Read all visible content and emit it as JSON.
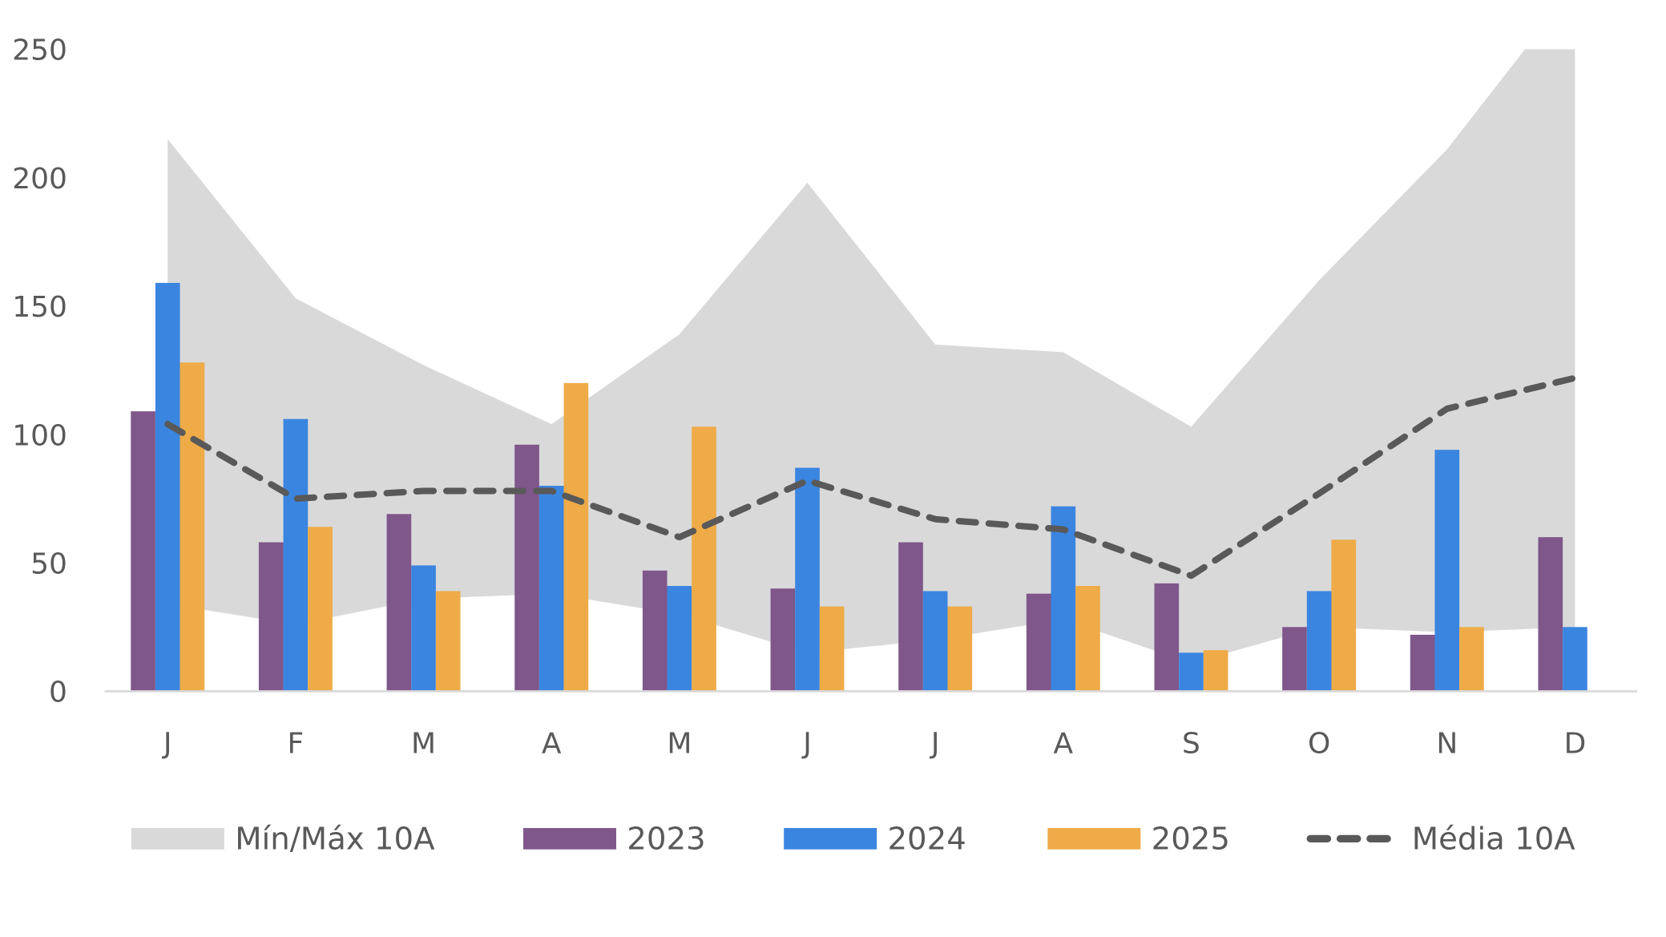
{
  "chart_data": {
    "type": "bar",
    "title": "",
    "xlabel": "",
    "ylabel": "",
    "categories": [
      "J",
      "F",
      "M",
      "A",
      "M",
      "J",
      "J",
      "A",
      "S",
      "O",
      "N",
      "D"
    ],
    "ylim": [
      0,
      250
    ],
    "yticks": [
      0,
      50,
      100,
      150,
      200,
      250
    ],
    "series": [
      {
        "name": "2023",
        "type": "bar",
        "color": "#7F578B",
        "values": [
          109,
          58,
          69,
          96,
          47,
          40,
          58,
          38,
          42,
          25,
          22,
          60
        ]
      },
      {
        "name": "2024",
        "type": "bar",
        "color": "#3A85E0",
        "values": [
          159,
          106,
          49,
          80,
          41,
          87,
          39,
          72,
          15,
          39,
          94,
          25
        ]
      },
      {
        "name": "2025",
        "type": "bar",
        "color": "#EEAB47",
        "values": [
          128,
          64,
          39,
          120,
          103,
          33,
          33,
          41,
          16,
          59,
          25,
          null
        ]
      },
      {
        "name": "Média 10A",
        "type": "line",
        "style": "dashed",
        "color": "#595959",
        "values": [
          104,
          75,
          78,
          78,
          60,
          82,
          67,
          63,
          45,
          77,
          110,
          122
        ]
      }
    ],
    "band": {
      "name": "Mín/Máx 10A",
      "color": "#D9D9D9",
      "min": [
        34,
        26,
        36,
        38,
        30,
        15,
        20,
        28,
        11,
        25,
        23,
        25
      ],
      "max": [
        215,
        153,
        127,
        104,
        139,
        198,
        135,
        132,
        103,
        160,
        211,
        275
      ]
    },
    "legend_position": "bottom"
  }
}
